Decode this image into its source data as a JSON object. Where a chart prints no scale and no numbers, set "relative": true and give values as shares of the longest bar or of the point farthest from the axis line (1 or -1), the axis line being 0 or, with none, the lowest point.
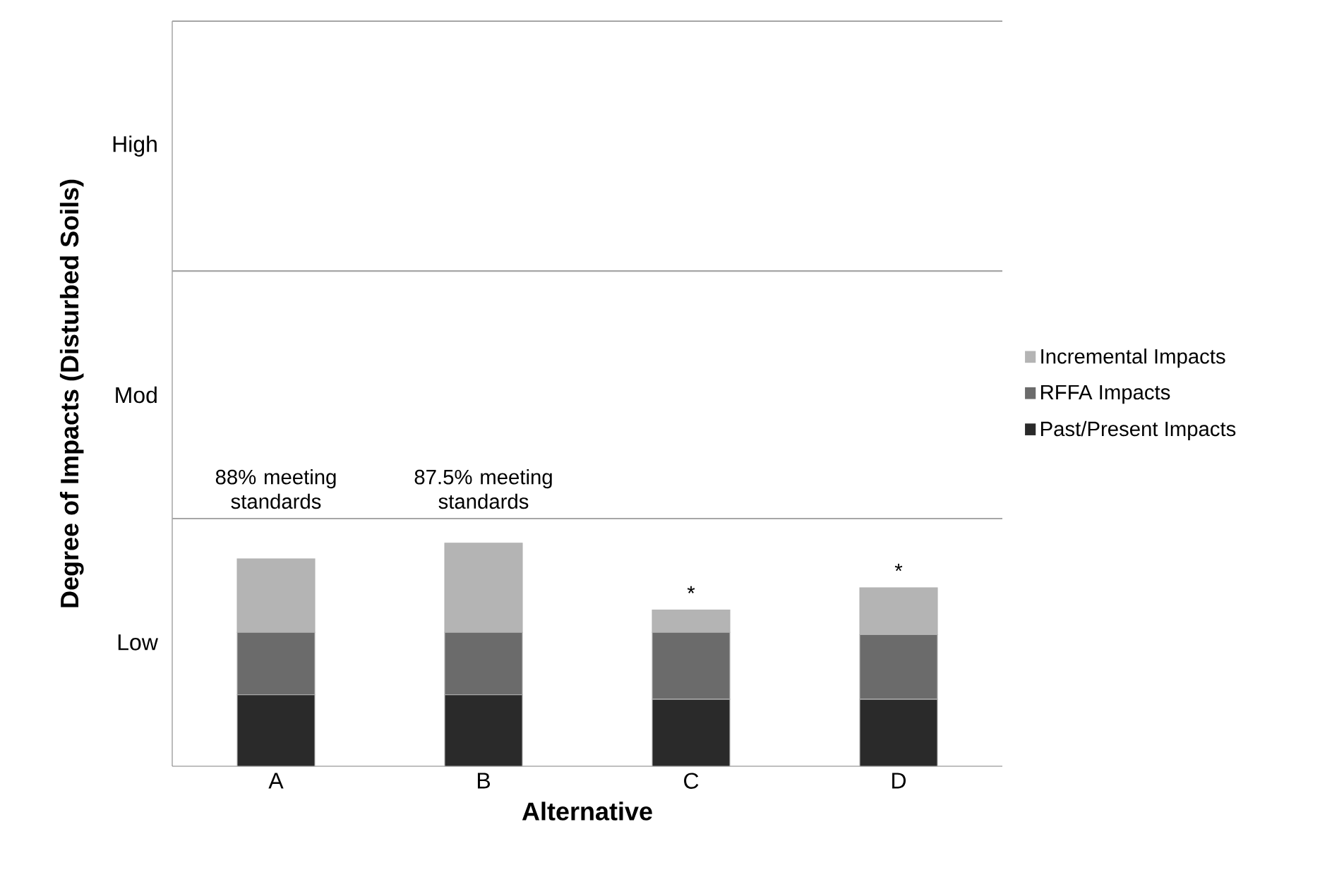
{
  "chart_data": {
    "type": "bar",
    "stacked": true,
    "relative": true,
    "xlabel": "Alternative",
    "ylabel": "Degree of Impacts (Disturbed Soils)",
    "categories": [
      "A",
      "B",
      "C",
      "D"
    ],
    "series": [
      {
        "name": "Past/Present Impacts",
        "color": "#2a2a2a",
        "values": [
          0.32,
          0.32,
          0.3,
          0.3
        ]
      },
      {
        "name": "RFFA Impacts",
        "color": "#6b6b6b",
        "values": [
          0.28,
          0.28,
          0.3,
          0.29
        ]
      },
      {
        "name": "Incremental Impacts",
        "color": "#b4b4b4",
        "values": [
          0.33,
          0.4,
          0.1,
          0.21
        ]
      }
    ],
    "ref_lines": [
      {
        "axis": "y",
        "value": 1.11
      },
      {
        "axis": "y",
        "value": 2.22
      },
      {
        "axis": "y",
        "value": 3.34
      }
    ],
    "legend": "right",
    "annotations": [
      "88% meeting standards",
      "87.5% meeting standards",
      "*",
      "*",
      "Low",
      "Mod",
      "High"
    ]
  }
}
